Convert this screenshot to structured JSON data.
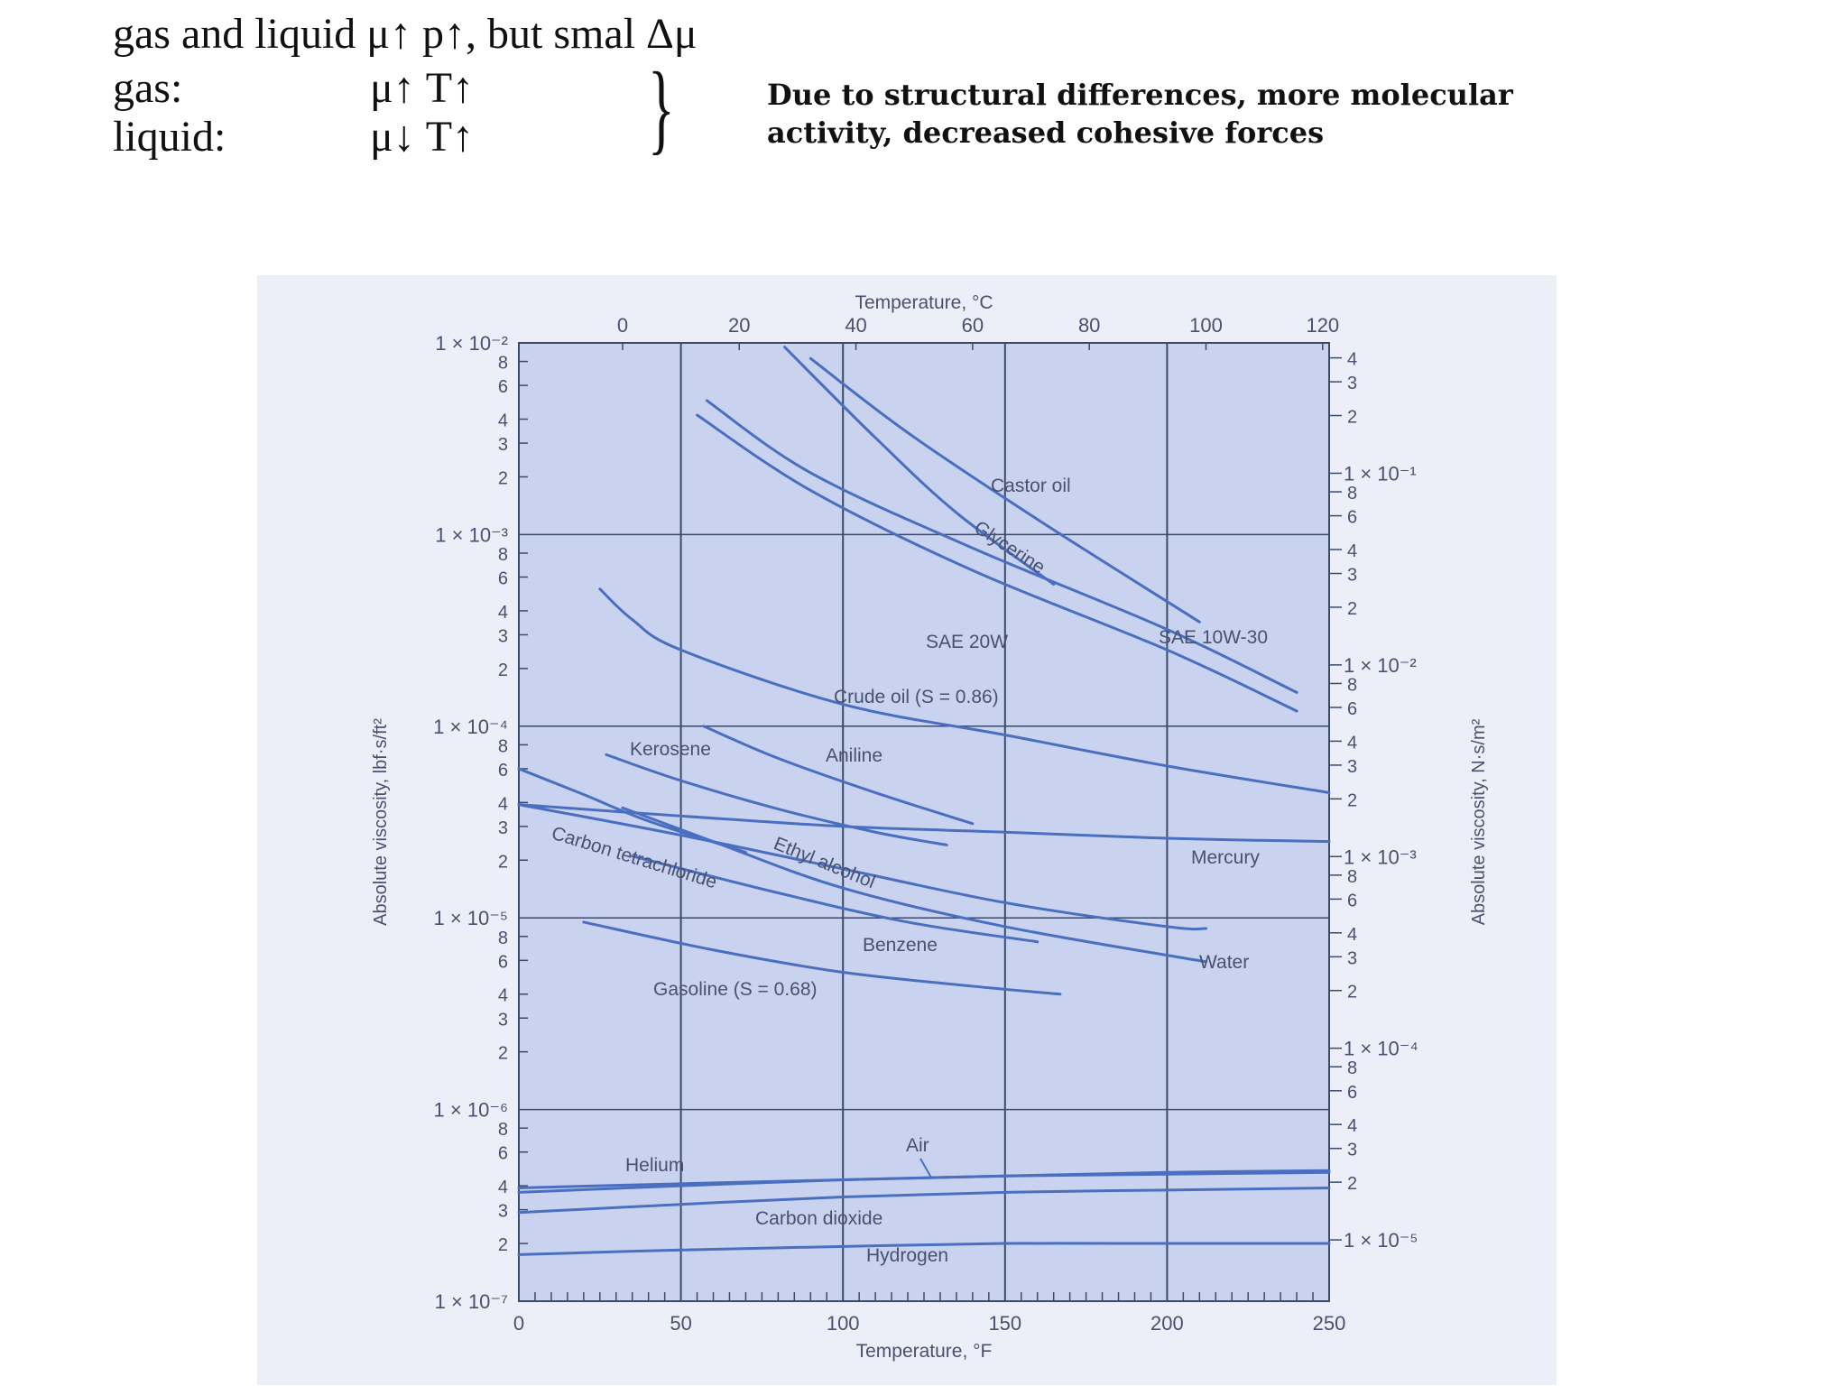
{
  "header": {
    "line1": "gas and liquid μ↑ p↑, but smal Δμ",
    "gas_label": "gas:",
    "gas_rel": "μ↑   T↑",
    "liquid_label": "liquid:",
    "liquid_rel": "μ↓   T↑",
    "brace": "}",
    "note_line1": "Due to structural differences, more molecular",
    "note_line2": "activity, decreased cohesive forces"
  },
  "chart_data": {
    "type": "line",
    "title": "",
    "xlabel": "Temperature, °F",
    "x2label": "Temperature, °C",
    "ylabel": "Absolute viscosity, lbf·s/ft²",
    "y2label": "Absolute viscosity, N·s/m²",
    "xlim": [
      0,
      250
    ],
    "ylim_exp": [
      -7,
      -2
    ],
    "grid": true,
    "x_ticks": [
      "0",
      "50",
      "100",
      "150",
      "200",
      "250"
    ],
    "x2_ticks": [
      {
        "c": 0,
        "label": "0"
      },
      {
        "c": 20,
        "label": "20"
      },
      {
        "c": 40,
        "label": "40"
      },
      {
        "c": 60,
        "label": "60"
      },
      {
        "c": 80,
        "label": "80"
      },
      {
        "c": 100,
        "label": "100"
      },
      {
        "c": 120,
        "label": "120"
      }
    ],
    "y_decade_labels": [
      {
        "exp": -2,
        "label": "1 × 10⁻²"
      },
      {
        "exp": -3,
        "label": "1 × 10⁻³"
      },
      {
        "exp": -4,
        "label": "1 × 10⁻⁴"
      },
      {
        "exp": -5,
        "label": "1 × 10⁻⁵"
      },
      {
        "exp": -6,
        "label": "1 × 10⁻⁶"
      },
      {
        "exp": -7,
        "label": "1 × 10⁻⁷"
      }
    ],
    "y_minor": [
      "2",
      "3",
      "4",
      "6",
      "8"
    ],
    "y2_decade_labels": [
      {
        "exp": -1,
        "label": "1 × 10⁻¹"
      },
      {
        "exp": -2,
        "label": "1 × 10⁻²"
      },
      {
        "exp": -3,
        "label": "1 × 10⁻³"
      },
      {
        "exp": -4,
        "label": "1 × 10⁻⁴"
      },
      {
        "exp": -5,
        "label": "1 × 10⁻⁵"
      }
    ],
    "y2_minor": [
      "2",
      "3",
      "4",
      "6",
      "8"
    ],
    "series": [
      {
        "name": "Castor oil",
        "points": [
          [
            90,
            0.0083
          ],
          [
            120,
            0.0034
          ],
          [
            160,
            0.0012
          ],
          [
            210,
            0.00035
          ]
        ]
      },
      {
        "name": "Glycerine",
        "points": [
          [
            82,
            0.0095
          ],
          [
            110,
            0.0032
          ],
          [
            135,
            0.0013
          ],
          [
            165,
            0.00055
          ]
        ]
      },
      {
        "name": "SAE 10W-30",
        "points": [
          [
            58,
            0.005
          ],
          [
            90,
            0.0021
          ],
          [
            140,
            0.00085
          ],
          [
            200,
            0.00032
          ],
          [
            240,
            0.00015
          ]
        ]
      },
      {
        "name": "SAE 20W",
        "points": [
          [
            55,
            0.0042
          ],
          [
            90,
            0.0017
          ],
          [
            140,
            0.00065
          ],
          [
            200,
            0.00025
          ],
          [
            240,
            0.00012
          ]
        ]
      },
      {
        "name": "Crude oil (S = 0.86)",
        "points": [
          [
            25,
            0.00052
          ],
          [
            35,
            0.00036
          ],
          [
            50,
            0.00025
          ],
          [
            100,
            0.00013
          ],
          [
            150,
            9e-05
          ],
          [
            200,
            6.2e-05
          ],
          [
            250,
            4.5e-05
          ]
        ]
      },
      {
        "name": "Aniline",
        "points": [
          [
            57,
            0.0001
          ],
          [
            80,
            6.8e-05
          ],
          [
            110,
            4.5e-05
          ],
          [
            140,
            3.1e-05
          ]
        ]
      },
      {
        "name": "Kerosene",
        "points": [
          [
            27,
            7.1e-05
          ],
          [
            50,
            5.2e-05
          ],
          [
            80,
            3.7e-05
          ],
          [
            110,
            2.8e-05
          ],
          [
            132,
            2.4e-05
          ]
        ]
      },
      {
        "name": "Mercury",
        "points": [
          [
            0,
            3.9e-05
          ],
          [
            50,
            3.4e-05
          ],
          [
            100,
            3e-05
          ],
          [
            150,
            2.8e-05
          ],
          [
            200,
            2.6e-05
          ],
          [
            250,
            2.5e-05
          ]
        ]
      },
      {
        "name": "Carbon tetrachloride",
        "points": [
          [
            0,
            6e-05
          ],
          [
            20,
            4.4e-05
          ],
          [
            40,
            3.2e-05
          ],
          [
            70,
            2.2e-05
          ]
        ]
      },
      {
        "name": "Ethyl alcohol",
        "points": [
          [
            0,
            3.9e-05
          ],
          [
            50,
            2.7e-05
          ],
          [
            100,
            1.8e-05
          ],
          [
            150,
            1.2e-05
          ],
          [
            200,
            9e-06
          ],
          [
            212,
            8.8e-06
          ]
        ]
      },
      {
        "name": "Water",
        "points": [
          [
            32,
            3.75e-05
          ],
          [
            60,
            2.5e-05
          ],
          [
            100,
            1.43e-05
          ],
          [
            150,
            9e-06
          ],
          [
            212,
            5.9e-06
          ]
        ]
      },
      {
        "name": "Benzene",
        "points": [
          [
            35,
            2.1e-05
          ],
          [
            80,
            1.35e-05
          ],
          [
            120,
            9.5e-06
          ],
          [
            160,
            7.5e-06
          ]
        ]
      },
      {
        "name": "Gasoline (S = 0.68)",
        "points": [
          [
            20,
            9.5e-06
          ],
          [
            60,
            6.8e-06
          ],
          [
            100,
            5.2e-06
          ],
          [
            140,
            4.4e-06
          ],
          [
            167,
            4e-06
          ]
        ]
      },
      {
        "name": "Air",
        "points": [
          [
            0,
            3.7e-07
          ],
          [
            50,
            4e-07
          ],
          [
            100,
            4.3e-07
          ],
          [
            150,
            4.5e-07
          ],
          [
            200,
            4.7e-07
          ],
          [
            250,
            4.8e-07
          ]
        ]
      },
      {
        "name": "Helium",
        "points": [
          [
            0,
            3.9e-07
          ],
          [
            50,
            4.1e-07
          ],
          [
            100,
            4.3e-07
          ],
          [
            150,
            4.5e-07
          ],
          [
            200,
            4.6e-07
          ],
          [
            250,
            4.7e-07
          ]
        ]
      },
      {
        "name": "Carbon dioxide",
        "points": [
          [
            0,
            2.9e-07
          ],
          [
            50,
            3.2e-07
          ],
          [
            100,
            3.5e-07
          ],
          [
            150,
            3.7e-07
          ],
          [
            200,
            3.8e-07
          ],
          [
            250,
            3.9e-07
          ]
        ]
      },
      {
        "name": "Hydrogen",
        "points": [
          [
            0,
            1.75e-07
          ],
          [
            50,
            1.85e-07
          ],
          [
            100,
            1.93e-07
          ],
          [
            150,
            2e-07
          ],
          [
            200,
            2e-07
          ],
          [
            250,
            2e-07
          ]
        ]
      }
    ],
    "series_labels": [
      {
        "series": "Castor oil",
        "text": "Castor oil"
      },
      {
        "series": "Glycerine",
        "text": "Glycerine"
      },
      {
        "series": "SAE 20W",
        "text": "SAE 20W"
      },
      {
        "series": "SAE 10W-30",
        "text": "SAE 10W-30"
      },
      {
        "series": "Crude oil (S = 0.86)",
        "text": "Crude oil (S = 0.86)"
      },
      {
        "series": "Kerosene",
        "text": "Kerosene"
      },
      {
        "series": "Aniline",
        "text": "Aniline"
      },
      {
        "series": "Mercury",
        "text": "Mercury"
      },
      {
        "series": "Carbon tetrachloride",
        "text": "Carbon tetrachloride"
      },
      {
        "series": "Ethyl alcohol",
        "text": "Ethyl alcohol"
      },
      {
        "series": "Benzene",
        "text": "Benzene"
      },
      {
        "series": "Water",
        "text": "Water"
      },
      {
        "series": "Gasoline (S = 0.68)",
        "text": "Gasoline (S = 0.68)"
      },
      {
        "series": "Air",
        "text": "Air"
      },
      {
        "series": "Helium",
        "text": "Helium"
      },
      {
        "series": "Carbon dioxide",
        "text": "Carbon dioxide"
      },
      {
        "series": "Hydrogen",
        "text": "Hydrogen"
      }
    ],
    "colors": {
      "plot_bg": "#c9d3f0",
      "line": "#4a6fc0",
      "grid": "#3c4a6a",
      "text": "#4a5070"
    }
  }
}
